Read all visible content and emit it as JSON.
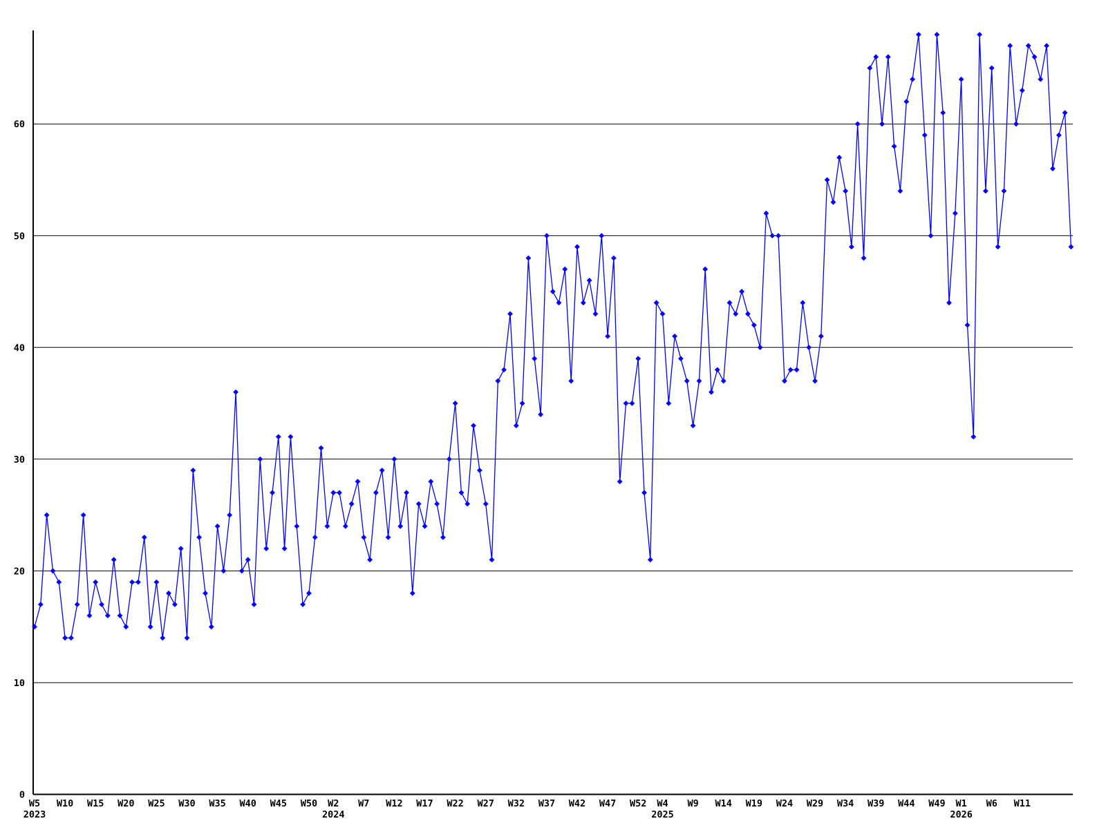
{
  "chart_data": {
    "type": "line",
    "title": "",
    "xlabel": "",
    "ylabel": "",
    "legend": null,
    "grid": "horizontal",
    "line_color": "#0000ff",
    "axis_color": "#000000",
    "background_color": "#ffffff",
    "marker": "diamond",
    "ylim": [
      0,
      68.5
    ],
    "yticks": [
      0,
      10,
      20,
      30,
      40,
      50,
      60
    ],
    "grid_values": [
      10,
      20,
      30,
      40,
      50,
      60
    ],
    "x_unit": "ISO week",
    "first_point": {
      "year": 2023,
      "week": 5
    },
    "x_ticks": [
      {
        "index": 0,
        "label": "W5",
        "year": "2023"
      },
      {
        "index": 5,
        "label": "W10"
      },
      {
        "index": 10,
        "label": "W15"
      },
      {
        "index": 15,
        "label": "W20"
      },
      {
        "index": 20,
        "label": "W25"
      },
      {
        "index": 25,
        "label": "W30"
      },
      {
        "index": 30,
        "label": "W35"
      },
      {
        "index": 35,
        "label": "W40"
      },
      {
        "index": 40,
        "label": "W45"
      },
      {
        "index": 45,
        "label": "W50"
      },
      {
        "index": 49,
        "label": "W2",
        "year": "2024"
      },
      {
        "index": 54,
        "label": "W7"
      },
      {
        "index": 59,
        "label": "W12"
      },
      {
        "index": 64,
        "label": "W17"
      },
      {
        "index": 69,
        "label": "W22"
      },
      {
        "index": 74,
        "label": "W27"
      },
      {
        "index": 79,
        "label": "W32"
      },
      {
        "index": 84,
        "label": "W37"
      },
      {
        "index": 89,
        "label": "W42"
      },
      {
        "index": 94,
        "label": "W47"
      },
      {
        "index": 99,
        "label": "W52"
      },
      {
        "index": 103,
        "label": "W4",
        "year": "2025"
      },
      {
        "index": 108,
        "label": "W9"
      },
      {
        "index": 113,
        "label": "W14"
      },
      {
        "index": 118,
        "label": "W19"
      },
      {
        "index": 123,
        "label": "W24"
      },
      {
        "index": 128,
        "label": "W29"
      },
      {
        "index": 133,
        "label": "W34"
      },
      {
        "index": 138,
        "label": "W39"
      },
      {
        "index": 143,
        "label": "W44"
      },
      {
        "index": 148,
        "label": "W49"
      },
      {
        "index": 152,
        "label": "W1",
        "year": "2026"
      },
      {
        "index": 157,
        "label": "W6"
      },
      {
        "index": 162,
        "label": "W11"
      }
    ],
    "values": [
      15,
      17,
      25,
      20,
      19,
      14,
      14,
      17,
      25,
      16,
      19,
      17,
      16,
      21,
      16,
      15,
      19,
      19,
      23,
      15,
      19,
      14,
      18,
      17,
      22,
      14,
      29,
      23,
      18,
      15,
      24,
      20,
      25,
      36,
      20,
      21,
      17,
      30,
      22,
      27,
      32,
      22,
      32,
      24,
      17,
      18,
      23,
      31,
      24,
      27,
      27,
      24,
      26,
      28,
      23,
      21,
      27,
      29,
      23,
      30,
      24,
      27,
      18,
      26,
      24,
      28,
      26,
      23,
      30,
      35,
      27,
      26,
      33,
      29,
      26,
      21,
      37,
      38,
      43,
      33,
      35,
      48,
      39,
      34,
      50,
      45,
      44,
      47,
      37,
      49,
      44,
      46,
      43,
      50,
      41,
      48,
      28,
      35,
      35,
      39,
      27,
      21,
      44,
      43,
      35,
      41,
      39,
      37,
      33,
      37,
      47,
      36,
      38,
      37,
      44,
      43,
      45,
      43,
      42,
      40,
      52,
      50,
      50,
      37,
      38,
      38,
      44,
      40,
      37,
      41,
      55,
      53,
      57,
      54,
      49,
      60,
      48,
      65,
      66,
      60,
      66,
      58,
      54,
      62,
      64,
      68,
      59,
      50,
      68,
      61,
      44,
      52,
      64,
      42,
      32,
      68,
      54,
      65,
      49,
      54,
      67,
      60,
      63,
      67,
      66,
      64,
      67,
      56,
      59,
      61,
      49
    ]
  }
}
